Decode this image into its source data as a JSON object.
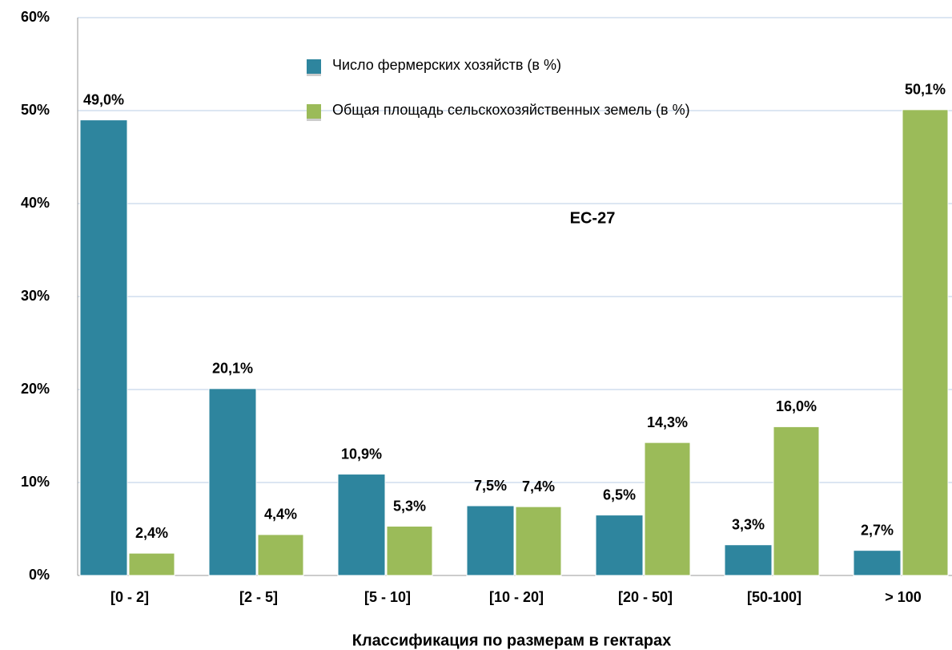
{
  "chart_data": {
    "type": "bar",
    "title": "ЕС-27",
    "x_label": "Классификация по размерам в гектарах",
    "categories": [
      "[0 - 2]",
      "[2 - 5]",
      "[5 - 10]",
      "[10 - 20]",
      "[20 - 50]",
      "[50-100]",
      "> 100"
    ],
    "series": [
      {
        "name": "Число фермерских хозяйств (в %)",
        "color": "#2e859e",
        "values": [
          49.0,
          20.1,
          10.9,
          7.5,
          6.5,
          3.3,
          2.7
        ],
        "value_labels": [
          "49,0%",
          "20,1%",
          "10,9%",
          "7,5%",
          "6,5%",
          "3,3%",
          "2,7%"
        ]
      },
      {
        "name": "Общая площадь сельскохозяйственных земель (в %)",
        "color": "#9bbb59",
        "values": [
          2.4,
          4.4,
          5.3,
          7.4,
          14.3,
          16.0,
          50.1
        ],
        "value_labels": [
          "2,4%",
          "4,4%",
          "5,3%",
          "7,4%",
          "14,3%",
          "16,0%",
          "50,1%"
        ]
      }
    ],
    "ylim": [
      0,
      60
    ],
    "yticks": [
      {
        "value": 0,
        "label": "0%"
      },
      {
        "value": 10,
        "label": "10%"
      },
      {
        "value": 20,
        "label": "20%"
      },
      {
        "value": 30,
        "label": "30%"
      },
      {
        "value": 40,
        "label": "40%"
      },
      {
        "value": 50,
        "label": "50%"
      },
      {
        "value": 60,
        "label": "60%"
      }
    ],
    "grid": true
  }
}
